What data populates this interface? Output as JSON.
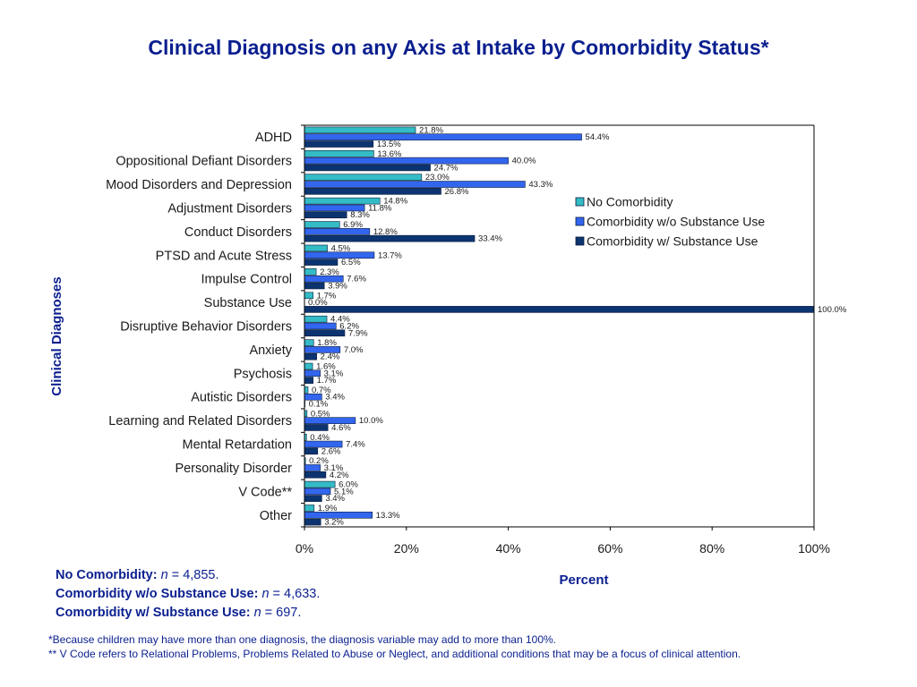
{
  "chart_data": {
    "type": "bar",
    "orientation": "horizontal",
    "title": "Clinical Diagnosis on any Axis at Intake by Comorbidity Status*",
    "xlabel": "Percent",
    "ylabel": "Clinical Diagnoses",
    "xlim": [
      0,
      100
    ],
    "xticks": [
      "0%",
      "20%",
      "40%",
      "60%",
      "80%",
      "100%"
    ],
    "legend_position": "right",
    "grid": false,
    "categories": [
      "ADHD",
      "Oppositional Defiant Disorders",
      "Mood Disorders and Depression",
      "Adjustment Disorders",
      "Conduct Disorders",
      "PTSD and Acute Stress",
      "Impulse Control",
      "Substance Use",
      "Disruptive Behavior Disorders",
      "Anxiety",
      "Psychosis",
      "Autistic Disorders",
      "Learning and Related Disorders",
      "Mental Retardation",
      "Personality Disorder",
      "V Code**",
      "Other"
    ],
    "series": [
      {
        "name": "No Comorbidity",
        "color": "#33bbc6",
        "values": [
          21.8,
          13.6,
          23.0,
          14.8,
          6.9,
          4.5,
          2.3,
          1.7,
          4.4,
          1.8,
          1.6,
          0.7,
          0.5,
          0.4,
          0.2,
          6.0,
          1.9
        ],
        "labels": [
          "21.8%",
          "13.6%",
          "23.0%",
          "14.8%",
          "6.9%",
          "4.5%",
          "2.3%",
          "1.7%",
          "4.4%",
          "1.8%",
          "1.6%",
          "0.7%",
          "0.5%",
          "0.4%",
          "0.2%",
          "6.0%",
          "1.9%"
        ]
      },
      {
        "name": "Comorbidity w/o Substance Use",
        "color": "#3366ee",
        "values": [
          54.4,
          40.0,
          43.3,
          11.8,
          12.8,
          13.7,
          7.6,
          0.0,
          6.2,
          7.0,
          3.1,
          3.4,
          10.0,
          7.4,
          3.1,
          5.1,
          13.3
        ],
        "labels": [
          "54.4%",
          "40.0%",
          "43.3%",
          "11.8%",
          "12.8%",
          "13.7%",
          "7.6%",
          "0.0%",
          "6.2%",
          "7.0%",
          "3.1%",
          "3.4%",
          "10.0%",
          "7.4%",
          "3.1%",
          "5.1%",
          "13.3%"
        ]
      },
      {
        "name": "Comorbidity w/ Substance Use",
        "color": "#0c3470",
        "values": [
          13.5,
          24.7,
          26.8,
          8.3,
          33.4,
          6.5,
          3.9,
          100.0,
          7.9,
          2.4,
          1.7,
          0.1,
          4.6,
          2.6,
          4.2,
          3.4,
          3.2
        ],
        "labels": [
          "13.5%",
          "24.7%",
          "26.8%",
          "8.3%",
          "33.4%",
          "6.5%",
          "3.9%",
          "100.0%",
          "7.9%",
          "2.4%",
          "1.7%",
          "0.1%",
          "4.6%",
          "2.6%",
          "4.2%",
          "3.4%",
          "3.2%"
        ]
      }
    ]
  },
  "notes": {
    "line1_label": "No Comorbidity:",
    "line1_n": "n",
    "line1_value": " = 4,855.",
    "line2_label": "Comorbidity w/o Substance Use:",
    "line2_n": "n",
    "line2_value": " = 4,633.",
    "line3_label": "Comorbidity w/ Substance Use:",
    "line3_n": "n",
    "line3_value": " = 697."
  },
  "footnotes": {
    "f1": "*Because children may have more than one diagnosis, the diagnosis variable may add to more than 100%.",
    "f2": "** V Code refers to Relational Problems, Problems Related to Abuse or Neglect, and additional conditions that may be a focus of clinical attention."
  },
  "colors": {
    "title": "#0a1f8f",
    "axis": "#000000"
  }
}
